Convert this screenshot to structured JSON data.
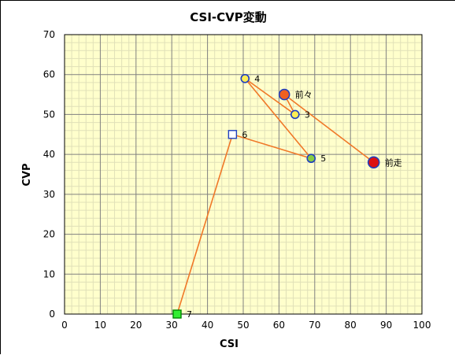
{
  "chart_data": {
    "type": "scatter",
    "title": "CSI-CVP変動",
    "xlabel": "CSI",
    "ylabel": "CVP",
    "xlim": [
      0,
      100
    ],
    "ylim": [
      0,
      70
    ],
    "xticks": [
      0,
      10,
      20,
      30,
      40,
      50,
      60,
      70,
      80,
      90,
      100
    ],
    "yticks": [
      0,
      10,
      20,
      30,
      40,
      50,
      60,
      70
    ],
    "grid": true,
    "plot_background": "#ffffcc",
    "major_grid_color": "#808080",
    "minor_grid_color": "#e0e0b8",
    "line_color": "#f07828",
    "points": [
      {
        "label": "7",
        "x": 31.5,
        "y": 0,
        "marker": "square",
        "fill": "#33ee33",
        "stroke": "#008800",
        "size": "small"
      },
      {
        "label": "6",
        "x": 47,
        "y": 45,
        "marker": "square",
        "fill": "#ffffff",
        "stroke": "#1f3fbf",
        "size": "small"
      },
      {
        "label": "5",
        "x": 69,
        "y": 39,
        "marker": "circle",
        "fill": "#88cc44",
        "stroke": "#1f3fbf",
        "size": "small"
      },
      {
        "label": "4",
        "x": 50.5,
        "y": 59,
        "marker": "circle",
        "fill": "#ffee55",
        "stroke": "#1f3fbf",
        "size": "small"
      },
      {
        "label": "3",
        "x": 64.5,
        "y": 50,
        "marker": "circle",
        "fill": "#ffee55",
        "stroke": "#1f3fbf",
        "size": "small"
      },
      {
        "label": "前々",
        "x": 61.5,
        "y": 55,
        "marker": "circle",
        "fill": "#f06020",
        "stroke": "#1f3fbf",
        "size": "medium"
      },
      {
        "label": "前走",
        "x": 86.5,
        "y": 38,
        "marker": "circle",
        "fill": "#dd1111",
        "stroke": "#1f3fbf",
        "size": "large"
      }
    ],
    "path_order": [
      "7",
      "6",
      "5",
      "4",
      "3",
      "前々",
      "前走"
    ]
  }
}
